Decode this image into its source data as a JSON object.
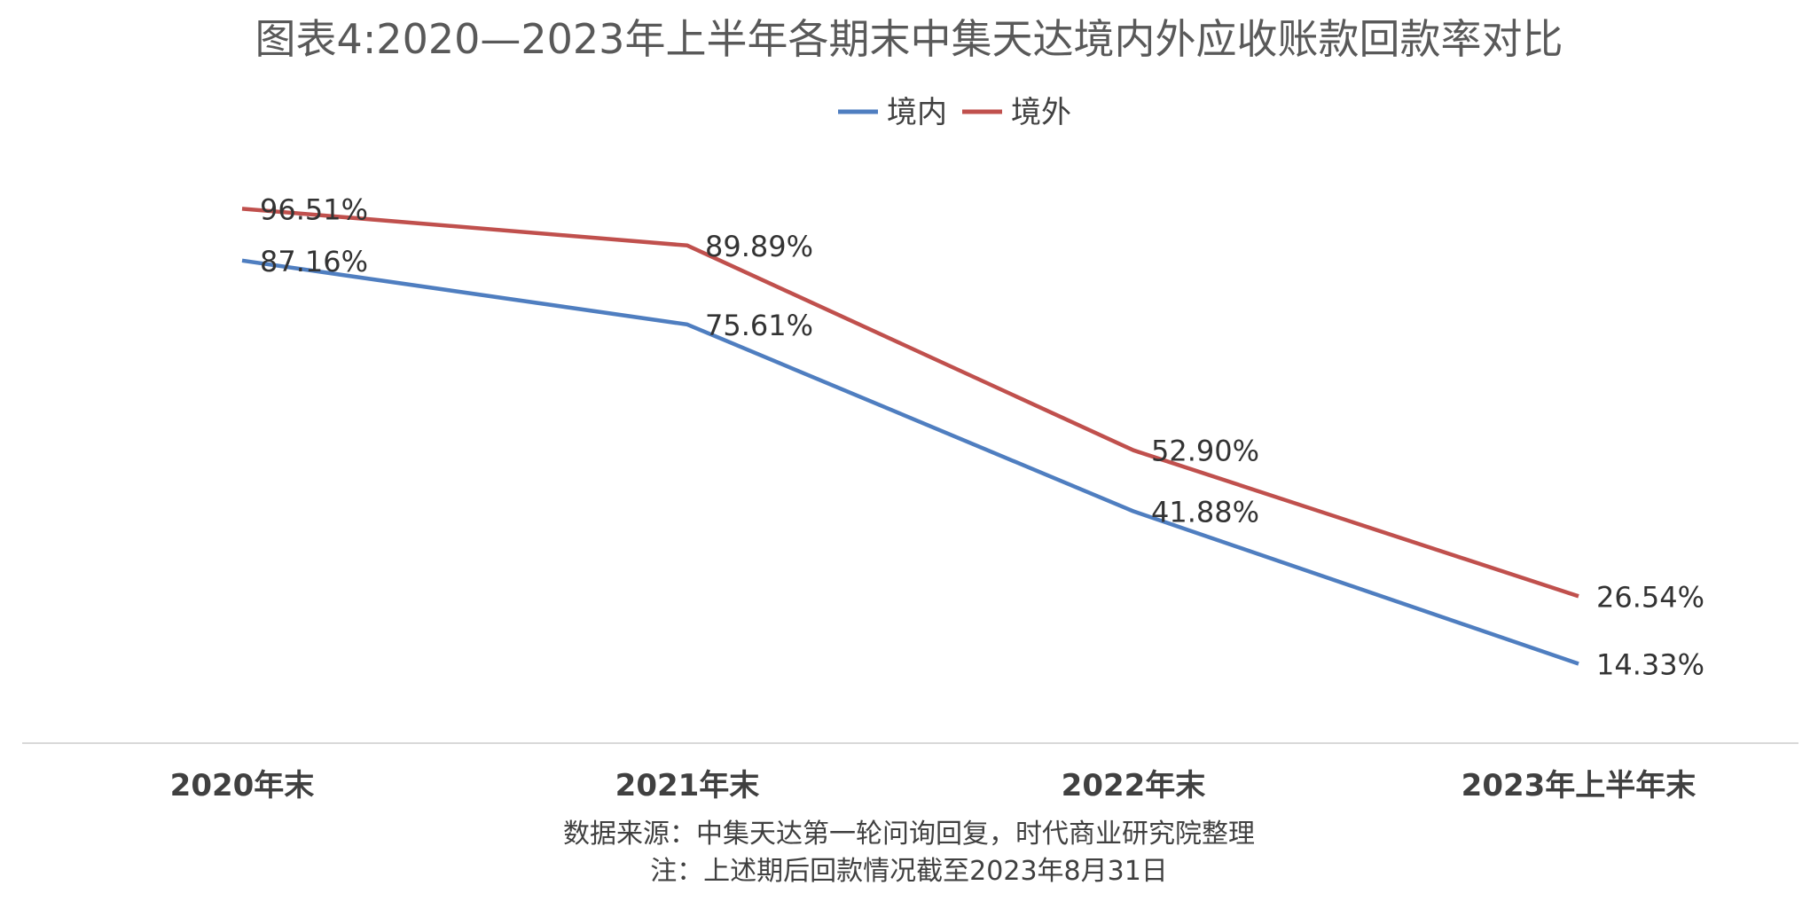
{
  "chart_data": {
    "type": "line",
    "title": "图表4:2020—2023年上半年各期末中集天达境内外应收账款回款率对比",
    "categories": [
      "2020年末",
      "2021年末",
      "2022年末",
      "2023年上半年末"
    ],
    "series": [
      {
        "name": "境内",
        "color": "#4F7EC0",
        "values": [
          87.16,
          75.61,
          41.88,
          14.33
        ],
        "labels": [
          "87.16%",
          "75.61%",
          "41.88%",
          "14.33%"
        ]
      },
      {
        "name": "境外",
        "color": "#C0504D",
        "values": [
          96.51,
          89.89,
          52.9,
          26.54
        ],
        "labels": [
          "96.51%",
          "89.89%",
          "52.90%",
          "26.54%"
        ]
      }
    ],
    "ylim": [
      0,
      115
    ],
    "grid": false,
    "legend_position": "top-center",
    "source": "数据来源：中集天达第一轮问询回复，时代商业研究院整理",
    "note": "注：上述期后回款情况截至2023年8月31日"
  }
}
